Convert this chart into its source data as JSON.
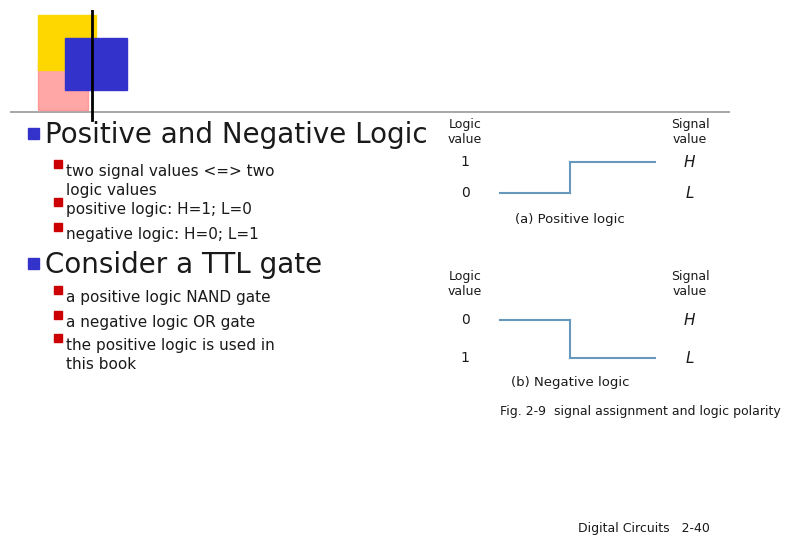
{
  "bg_color": "#ffffff",
  "header_line_color": "#999999",
  "logo_yellow": "#FFD700",
  "logo_blue": "#3333CC",
  "logo_red": "#FF8888",
  "logo_black": "#000000",
  "bullet_blue": "#3333CC",
  "bullet_red": "#CC0000",
  "title_text": "Positive and Negative Logic",
  "title_fontsize": 20,
  "sub_items": [
    "two signal values <=> two\nlogic values",
    "positive logic: H=1; L=0",
    "negative logic: H=0; L=1"
  ],
  "title2_text": "Consider a TTL gate",
  "sub_items2": [
    "a positive logic NAND gate",
    "a negative logic OR gate",
    "the positive logic is used in\nthis book"
  ],
  "diagram_line_color": "#6699BB",
  "fig_caption_a": "(a) Positive logic",
  "fig_caption_b": "(b) Negative logic",
  "fig_label": "Fig. 2-9  signal assignment and logic polarity",
  "page_label": "Digital Circuits   2-40",
  "text_color": "#1a1a1a"
}
